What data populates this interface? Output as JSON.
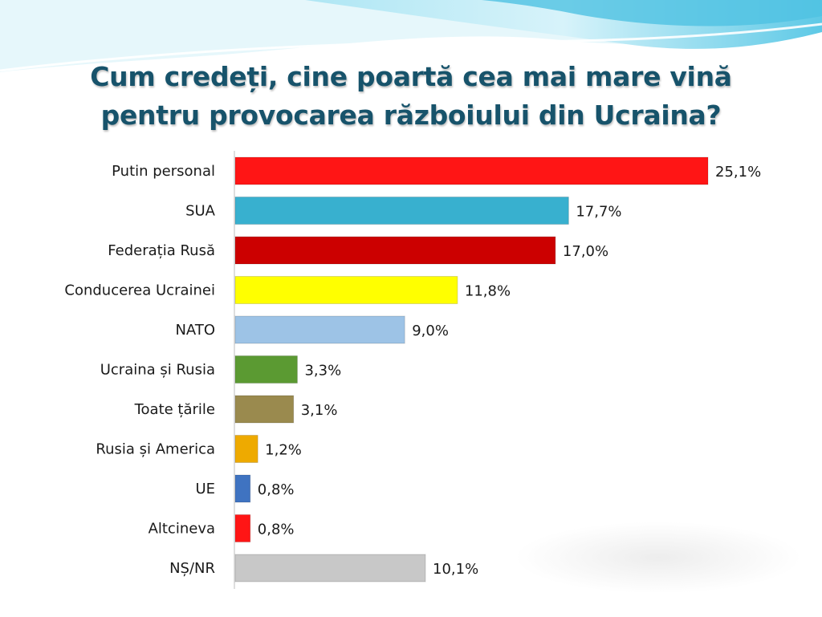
{
  "title": {
    "line1": "Cum credeți, cine poartă cea mai mare vină",
    "line2": "pentru provocarea războiului din  Ucraina?"
  },
  "chart_data": {
    "type": "bar",
    "orientation": "horizontal",
    "categories": [
      "Putin personal",
      "SUA",
      "Federația Rusă",
      "Conducerea Ucrainei",
      "NATO",
      "Ucraina și Rusia",
      "Toate țările",
      "Rusia și America",
      "UE",
      "Altcineva",
      "NȘ/NR"
    ],
    "values": [
      25.1,
      17.7,
      17.0,
      11.8,
      9.0,
      3.3,
      3.1,
      1.2,
      0.8,
      0.8,
      10.1
    ],
    "value_labels": [
      "25,1%",
      "17,7%",
      "17,0%",
      "11,8%",
      "9,0%",
      "3,3%",
      "3,1%",
      "1,2%",
      "0,8%",
      "0,8%",
      "10,1%"
    ],
    "colors": [
      "#ff1515",
      "#38b0cf",
      "#cc0000",
      "#ffff00",
      "#9dc3e6",
      "#5b9a32",
      "#9a8a4e",
      "#eeaa00",
      "#3f73c1",
      "#ff1515",
      "#c8c8c8"
    ],
    "unit": "%",
    "grid": false,
    "legend": "none"
  }
}
